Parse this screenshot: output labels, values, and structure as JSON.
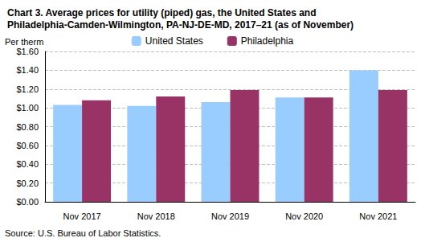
{
  "chart_data": {
    "type": "bar",
    "title": "Chart 3. Average prices for utility (piped) gas, the United States and Philadelphia-Camden-Wilmington, PA-NJ-DE-MD, 2017–21 (as of November)",
    "y_label": "Per therm",
    "source": "Source: U.S. Bureau of Labor Statistics.",
    "categories": [
      "Nov 2017",
      "Nov 2018",
      "Nov 2019",
      "Nov 2020",
      "Nov 2021"
    ],
    "series": [
      {
        "name": "United States",
        "color": "#99ccff",
        "values": [
          1.03,
          1.02,
          1.06,
          1.11,
          1.4
        ]
      },
      {
        "name": "Philadelphia",
        "color": "#993366",
        "values": [
          1.08,
          1.12,
          1.19,
          1.11,
          1.19
        ]
      }
    ],
    "ylim": [
      0,
      1.6
    ],
    "yticks": [
      {
        "value": 0,
        "label": "$0.00"
      },
      {
        "value": 0.2,
        "label": "$0.20"
      },
      {
        "value": 0.4,
        "label": "$0.40"
      },
      {
        "value": 0.6,
        "label": "$0.60"
      },
      {
        "value": 0.8,
        "label": "$0.80"
      },
      {
        "value": 1.0,
        "label": "$1.00"
      },
      {
        "value": 1.2,
        "label": "$1.20"
      },
      {
        "value": 1.4,
        "label": "$1.40"
      },
      {
        "value": 1.6,
        "label": "$1.60"
      }
    ],
    "grid": true,
    "legend": "top"
  }
}
